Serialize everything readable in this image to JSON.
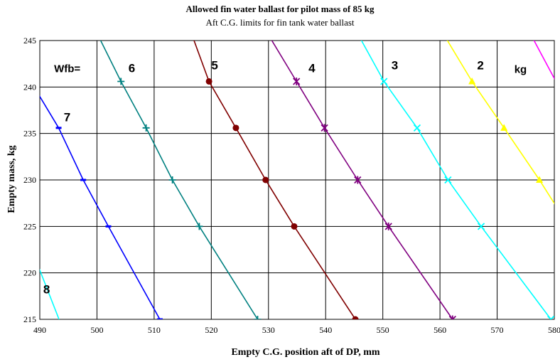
{
  "chart_data": {
    "type": "line",
    "title": "Allowed fin water ballast for pilot mass of 85 kg",
    "subtitle": "Aft C.G. limits for fin tank water ballast",
    "xlabel": "Empty C.G.  position aft of DP, mm",
    "ylabel": "Empty mass, kg",
    "xlim": [
      490,
      580
    ],
    "ylim": [
      215,
      245
    ],
    "xticks": [
      490,
      500,
      510,
      520,
      530,
      540,
      550,
      560,
      570,
      580
    ],
    "yticks": [
      215,
      220,
      225,
      230,
      235,
      240,
      245
    ],
    "xtick_labels": [
      "490",
      "500",
      "510",
      "520",
      "530",
      "540",
      "550",
      "560",
      "570",
      "580"
    ],
    "ytick_labels": [
      "215",
      "220",
      "225",
      "230",
      "235",
      "240",
      "245"
    ],
    "grid": true,
    "legend": "none",
    "annotations": [
      {
        "text": "Wfb=",
        "x": 492.5,
        "y": 241.6
      },
      {
        "text": "6",
        "x": 505.5,
        "y": 241.6
      },
      {
        "text": "5",
        "x": 520.0,
        "y": 241.9
      },
      {
        "text": "4",
        "x": 537.0,
        "y": 241.6
      },
      {
        "text": "3",
        "x": 551.5,
        "y": 241.9
      },
      {
        "text": "2",
        "x": 566.5,
        "y": 241.9
      },
      {
        "text": "kg",
        "x": 573.0,
        "y": 241.5
      },
      {
        "text": "7",
        "x": 494.2,
        "y": 236.3
      },
      {
        "text": "8",
        "x": 490.6,
        "y": 217.8
      }
    ],
    "series": [
      {
        "color": "#00ffff",
        "marker": "none",
        "points": [
          [
            487,
            225
          ],
          [
            494,
            214
          ]
        ]
      },
      {
        "color": "#0000ff",
        "marker": "dash",
        "points": [
          [
            489.0,
            240.0
          ],
          [
            493.3,
            235.6
          ],
          [
            497.6,
            230.0
          ],
          [
            502.0,
            225.0
          ],
          [
            511.0,
            215.0
          ]
        ]
      },
      {
        "color": "#008080",
        "marker": "plus",
        "points": [
          [
            500.4,
            245.3
          ],
          [
            504.2,
            240.6
          ],
          [
            508.6,
            235.6
          ],
          [
            513.2,
            230.0
          ],
          [
            517.9,
            225.0
          ],
          [
            528.1,
            215.0
          ]
        ]
      },
      {
        "color": "#800000",
        "marker": "circle",
        "points": [
          [
            516.8,
            245.3
          ],
          [
            519.6,
            240.6
          ],
          [
            524.3,
            235.6
          ],
          [
            529.5,
            230.0
          ],
          [
            534.5,
            225.0
          ],
          [
            545.2,
            215.0
          ]
        ]
      },
      {
        "color": "#800080",
        "marker": "star",
        "points": [
          [
            530.3,
            245.3
          ],
          [
            534.9,
            240.6
          ],
          [
            539.8,
            235.6
          ],
          [
            545.6,
            230.0
          ],
          [
            551.0,
            225.0
          ],
          [
            562.2,
            215.0
          ]
        ]
      },
      {
        "color": "#00ffff",
        "marker": "x",
        "points": [
          [
            546.0,
            245.3
          ],
          [
            550.2,
            240.6
          ],
          [
            556.0,
            235.6
          ],
          [
            561.4,
            230.0
          ],
          [
            567.2,
            225.0
          ],
          [
            579.4,
            215.0
          ]
        ]
      },
      {
        "color": "#ffff00",
        "marker": "triangle",
        "points": [
          [
            561.0,
            245.3
          ],
          [
            565.6,
            240.6
          ],
          [
            571.2,
            235.6
          ],
          [
            577.4,
            230.0
          ],
          [
            580.8,
            226.7
          ]
        ]
      },
      {
        "color": "#ff00ff",
        "marker": "none",
        "points": [
          [
            576.2,
            245.3
          ],
          [
            580.8,
            240.0
          ]
        ]
      }
    ]
  }
}
